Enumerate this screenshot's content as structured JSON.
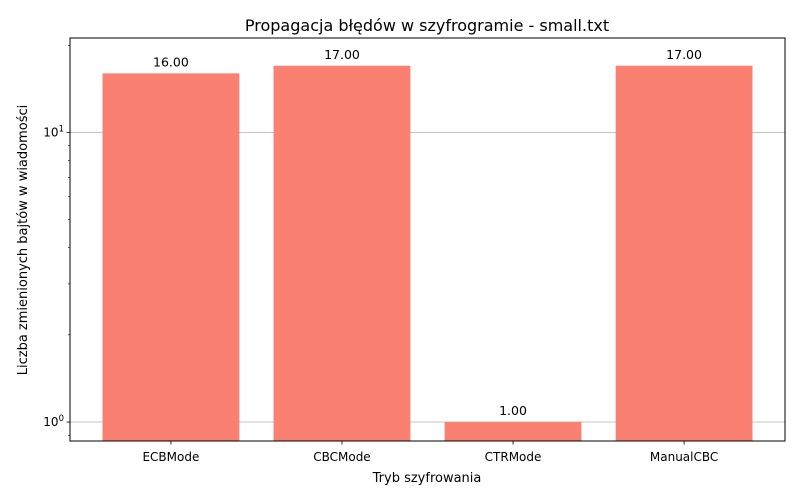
{
  "chart_data": {
    "type": "bar",
    "title": "Propagacja błędów w szyfrogramie - small.txt",
    "xlabel": "Tryb szyfrowania",
    "ylabel": "Liczba zmienionych bajtów w wiadomości",
    "categories": [
      "ECBMode",
      "CBCMode",
      "CTRMode",
      "ManualCBC"
    ],
    "values": [
      16,
      17,
      1,
      17
    ],
    "data_labels": [
      "16.00",
      "17.00",
      "1.00",
      "17.00"
    ],
    "y_scale": "log",
    "ylim": [
      0.86,
      21.2
    ],
    "y_ticks": [
      {
        "value": 1,
        "base": "10",
        "exp": "0"
      },
      {
        "value": 10,
        "base": "10",
        "exp": "1"
      }
    ],
    "grid": "y-major",
    "bar_color": "#fa8072"
  }
}
